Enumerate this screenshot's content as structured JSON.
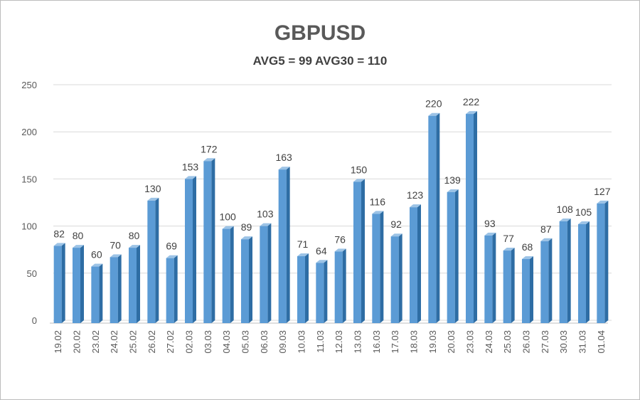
{
  "colors": {
    "bar_front": "#5b9bd5",
    "bar_side": "#2e6da4",
    "bar_top": "#9cc3e6",
    "grid": "#d9d9d9",
    "text": "#595959"
  },
  "chart_data": {
    "type": "bar",
    "title": "GBPUSD",
    "subtitle": "AVG5 = 99 AVG30 = 110",
    "xlabel": "",
    "ylabel": "",
    "ylim": [
      0,
      250
    ],
    "yticks": [
      0,
      50,
      100,
      150,
      200,
      250
    ],
    "grid": true,
    "categories": [
      "19.02",
      "20.02",
      "23.02",
      "24.02",
      "25.02",
      "26.02",
      "27.02",
      "02.03",
      "03.03",
      "04.03",
      "05.03",
      "06.03",
      "09.03",
      "10.03",
      "11.03",
      "12.03",
      "13.03",
      "16.03",
      "17.03",
      "18.03",
      "19.03",
      "20.03",
      "23.03",
      "24.03",
      "25.03",
      "26.03",
      "27.03",
      "30.03",
      "31.03",
      "01.04"
    ],
    "values": [
      82,
      80,
      60,
      70,
      80,
      130,
      69,
      153,
      172,
      100,
      89,
      103,
      163,
      71,
      64,
      76,
      150,
      116,
      92,
      123,
      220,
      139,
      222,
      93,
      77,
      68,
      87,
      108,
      105,
      127
    ]
  }
}
